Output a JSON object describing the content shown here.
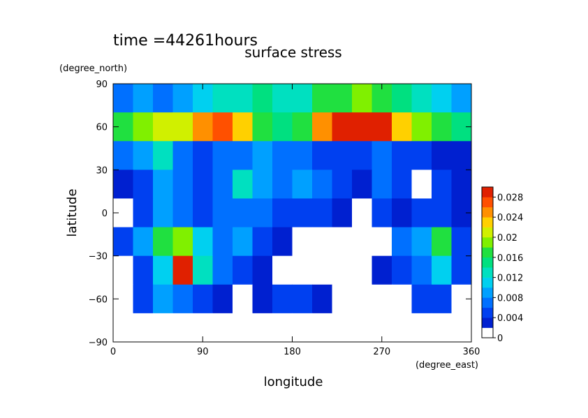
{
  "chart_data": {
    "type": "contour",
    "title": "surface stress",
    "subtitle": "time =44261hours",
    "xlabel": "longitude",
    "ylabel": "latitude",
    "xunit": "(degree_east)",
    "yunit": "(degree_north)",
    "xlim": [
      0,
      360
    ],
    "ylim": [
      -90,
      90
    ],
    "xticks": [
      0,
      90,
      180,
      270,
      360
    ],
    "yticks": [
      {
        "value": -90,
        "label": "−90"
      },
      {
        "value": -60,
        "label": "−60"
      },
      {
        "value": -30,
        "label": "−30"
      },
      0,
      30,
      60,
      90
    ],
    "x": [
      10,
      30,
      50,
      70,
      90,
      110,
      130,
      150,
      170,
      190,
      210,
      230,
      250,
      270,
      290,
      310,
      330,
      350
    ],
    "y": [
      80,
      60,
      40,
      20,
      0,
      -20,
      -40,
      -60,
      -80
    ],
    "z": [
      [
        0.006,
        0.008,
        0.006,
        0.008,
        0.01,
        0.012,
        0.012,
        0.014,
        0.012,
        0.012,
        0.016,
        0.016,
        0.018,
        0.016,
        0.014,
        0.012,
        0.01,
        0.008
      ],
      [
        0.016,
        0.018,
        0.02,
        0.02,
        0.024,
        0.026,
        0.022,
        0.016,
        0.014,
        0.016,
        0.024,
        0.028,
        0.028,
        0.028,
        0.022,
        0.018,
        0.016,
        0.014
      ],
      [
        0.006,
        0.008,
        0.012,
        0.006,
        0.004,
        0.006,
        0.006,
        0.008,
        0.006,
        0.006,
        0.004,
        0.004,
        0.004,
        0.006,
        0.004,
        0.004,
        0.002,
        0.002
      ],
      [
        0.002,
        0.004,
        0.008,
        0.006,
        0.004,
        0.006,
        0.012,
        0.008,
        0.006,
        0.008,
        0.006,
        0.004,
        0.002,
        0.006,
        0.004,
        0,
        0.004,
        0.002
      ],
      [
        0,
        0.004,
        0.008,
        0.006,
        0.004,
        0.006,
        0.006,
        0.006,
        0.004,
        0.004,
        0.004,
        0.002,
        0,
        0.004,
        0.002,
        0.004,
        0.004,
        0.002
      ],
      [
        0.004,
        0.008,
        0.016,
        0.018,
        0.01,
        0.006,
        0.008,
        0.004,
        0.002,
        0,
        0,
        0,
        0,
        0,
        0.006,
        0.008,
        0.016,
        0.004
      ],
      [
        0,
        0.004,
        0.01,
        0.028,
        0.012,
        0.006,
        0.004,
        0.002,
        0,
        0,
        0,
        0,
        0,
        0.002,
        0.004,
        0.006,
        0.01,
        0.004
      ],
      [
        0,
        0.004,
        0.008,
        0.006,
        0.004,
        0.002,
        0,
        0.002,
        0.004,
        0.004,
        0.002,
        0,
        0,
        0,
        0,
        0.004,
        0.004,
        0
      ],
      [
        0,
        0,
        0,
        0,
        0,
        0,
        0,
        0,
        0,
        0,
        0,
        0,
        0,
        0,
        0,
        0,
        0,
        0
      ]
    ],
    "levels": [
      0,
      0.002,
      0.004,
      0.006,
      0.008,
      0.01,
      0.012,
      0.014,
      0.016,
      0.018,
      0.02,
      0.022,
      0.024,
      0.026,
      0.028,
      0.03
    ],
    "colors": [
      "#ffffff",
      "#0020d0",
      "#0040f0",
      "#0070ff",
      "#00a0ff",
      "#00d0f0",
      "#00e0c0",
      "#00e080",
      "#20e040",
      "#80f000",
      "#d0f000",
      "#ffd000",
      "#ff9000",
      "#ff5000",
      "#e02000"
    ],
    "colorbar_ticks": [
      0,
      0.004,
      0.008,
      0.012,
      0.016,
      0.02,
      0.024,
      0.028
    ]
  }
}
